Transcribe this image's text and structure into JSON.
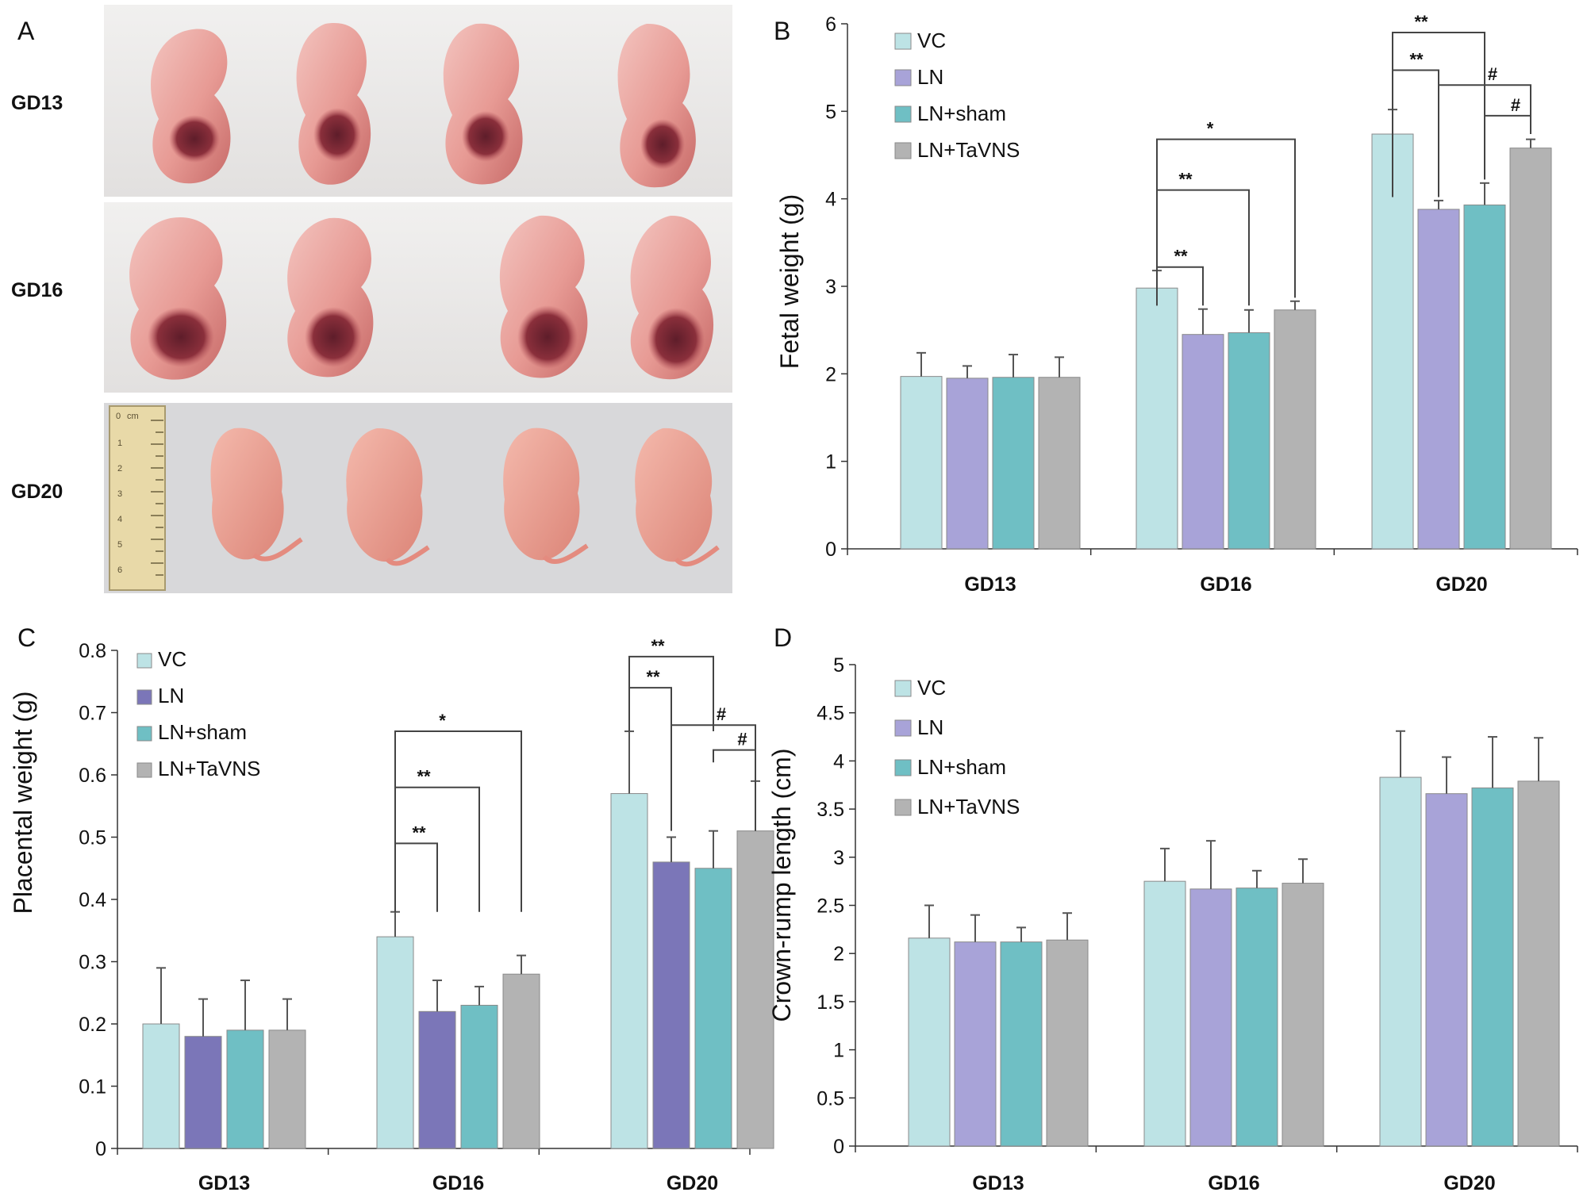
{
  "figure": {
    "panels": [
      "A",
      "B",
      "C",
      "D"
    ]
  },
  "photo_panel": {
    "letter": "A",
    "rows": [
      {
        "label": "GD13",
        "specimens": 4
      },
      {
        "label": "GD16",
        "specimens": 4
      },
      {
        "label": "GD20",
        "specimens": 4
      }
    ],
    "ruler_marks": [
      "0",
      "cm",
      "1",
      "2",
      "3",
      "4",
      "5",
      "6"
    ]
  },
  "chart_data": [
    {
      "panel": "B",
      "type": "bar",
      "ylabel": "Fetal weight (g)",
      "xlabel": "",
      "ylim": [
        0,
        6
      ],
      "yticks": [
        "0",
        "1",
        "2",
        "3",
        "4",
        "5",
        "6"
      ],
      "categories": [
        "GD13",
        "GD16",
        "GD20"
      ],
      "series": [
        {
          "name": "VC",
          "color": "#bde3e5",
          "values": [
            1.97,
            2.98,
            4.74
          ],
          "errors": [
            0.27,
            0.2,
            0.28
          ]
        },
        {
          "name": "LN",
          "color": "#a8a3d8",
          "values": [
            1.95,
            2.45,
            3.88
          ],
          "errors": [
            0.14,
            0.29,
            0.1
          ]
        },
        {
          "name": "LN+sham",
          "color": "#6fbfc4",
          "values": [
            1.96,
            2.47,
            3.93
          ],
          "errors": [
            0.26,
            0.26,
            0.25
          ]
        },
        {
          "name": "LN+TaVNS",
          "color": "#b3b3b3",
          "values": [
            1.96,
            2.73,
            4.58
          ],
          "errors": [
            0.23,
            0.1,
            0.1
          ]
        }
      ],
      "annotations": [
        {
          "text": "**",
          "category": "GD16",
          "from": 0,
          "to": 1,
          "level": 3.22,
          "drop_to": 2.78
        },
        {
          "text": "**",
          "category": "GD16",
          "from": 0,
          "to": 2,
          "level": 4.1,
          "drop_to": 2.78
        },
        {
          "text": "*",
          "category": "GD16",
          "from": 0,
          "to": 3,
          "level": 4.68,
          "drop_to": 2.87
        },
        {
          "text": "**",
          "category": "GD20",
          "from": 0,
          "to": 1,
          "level": 5.47,
          "drop_to": 4.02
        },
        {
          "text": "**",
          "category": "GD20",
          "from": 0,
          "to": 2,
          "level": 5.9,
          "drop_to": 4.22
        },
        {
          "text": "#",
          "category": "GD20",
          "from": 1,
          "to": 3,
          "level": 5.3,
          "drop_to": 4.74
        },
        {
          "text": "#",
          "category": "GD20",
          "from": 2,
          "to": 3,
          "level": 4.95,
          "drop_to": 4.74
        }
      ]
    },
    {
      "panel": "C",
      "type": "bar",
      "ylabel": "Placental weight (g)",
      "xlabel": "",
      "ylim": [
        0,
        0.8
      ],
      "yticks": [
        "0",
        "0.1",
        "0.2",
        "0.3",
        "0.4",
        "0.5",
        "0.6",
        "0.7",
        "0.8"
      ],
      "categories": [
        "GD13",
        "GD16",
        "GD20"
      ],
      "series": [
        {
          "name": "VC",
          "color": "#bde3e5",
          "values": [
            0.2,
            0.34,
            0.57
          ],
          "errors": [
            0.09,
            0.04,
            0.1
          ]
        },
        {
          "name": "LN",
          "color": "#7b76b8",
          "values": [
            0.18,
            0.22,
            0.46
          ],
          "errors": [
            0.06,
            0.05,
            0.04
          ]
        },
        {
          "name": "LN+sham",
          "color": "#6fbfc4",
          "values": [
            0.19,
            0.23,
            0.45
          ],
          "errors": [
            0.08,
            0.03,
            0.06
          ]
        },
        {
          "name": "LN+TaVNS",
          "color": "#b3b3b3",
          "values": [
            0.19,
            0.28,
            0.51
          ],
          "errors": [
            0.05,
            0.03,
            0.08
          ]
        }
      ],
      "annotations": [
        {
          "text": "**",
          "category": "GD16",
          "from": 0,
          "to": 1,
          "level": 0.49,
          "drop_to": 0.38
        },
        {
          "text": "**",
          "category": "GD16",
          "from": 0,
          "to": 2,
          "level": 0.58,
          "drop_to": 0.38
        },
        {
          "text": "*",
          "category": "GD16",
          "from": 0,
          "to": 3,
          "level": 0.67,
          "drop_to": 0.38
        },
        {
          "text": "**",
          "category": "GD20",
          "from": 0,
          "to": 1,
          "level": 0.74,
          "drop_to": 0.67
        },
        {
          "text": "**",
          "category": "GD20",
          "from": 0,
          "to": 2,
          "level": 0.79,
          "drop_to": 0.67
        },
        {
          "text": "#",
          "category": "GD20",
          "from": 1,
          "to": 3,
          "level": 0.68,
          "drop_to": 0.51
        },
        {
          "text": "#",
          "category": "GD20",
          "from": 2,
          "to": 3,
          "level": 0.64,
          "drop_to": 0.62
        }
      ]
    },
    {
      "panel": "D",
      "type": "bar",
      "ylabel": "Crown-rump length (cm)",
      "xlabel": "",
      "ylim": [
        0,
        5
      ],
      "yticks": [
        "0",
        "0.5",
        "1",
        "1.5",
        "2",
        "2.5",
        "3",
        "3.5",
        "4",
        "4.5",
        "5"
      ],
      "categories": [
        "GD13",
        "GD16",
        "GD20"
      ],
      "series": [
        {
          "name": "VC",
          "color": "#bde3e5",
          "values": [
            2.16,
            2.75,
            3.83
          ],
          "errors": [
            0.34,
            0.34,
            0.48
          ]
        },
        {
          "name": "LN",
          "color": "#a8a3d8",
          "values": [
            2.12,
            2.67,
            3.66
          ],
          "errors": [
            0.28,
            0.5,
            0.38
          ]
        },
        {
          "name": "LN+sham",
          "color": "#6fbfc4",
          "values": [
            2.12,
            2.68,
            3.72
          ],
          "errors": [
            0.15,
            0.18,
            0.53
          ]
        },
        {
          "name": "LN+TaVNS",
          "color": "#b3b3b3",
          "values": [
            2.14,
            2.73,
            3.79
          ],
          "errors": [
            0.28,
            0.25,
            0.45
          ]
        }
      ],
      "annotations": []
    }
  ]
}
